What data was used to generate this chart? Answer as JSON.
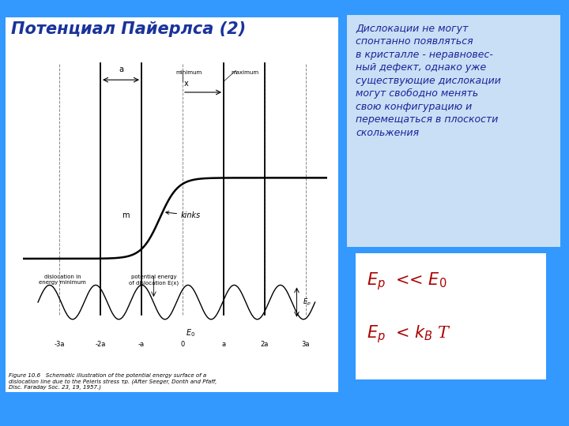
{
  "title": "Потенциал Пайерлса (2)",
  "bg_color": "#3399FF",
  "title_color": "#1a3399",
  "title_fontsize": 15,
  "text_box_color": "#c8dff5",
  "text_box_text": "Дислокации не могут\nспонтанно появляться\nв кристалле - неравновес-\nный дефект, однако уже\nсуществующие дислокации\nмогут свободно менять\nсвою конфигурацию и\nперемещаться в плоскости\nскольжения",
  "text_box_text_color": "#1a2299",
  "eq_box_color": "#ffffff",
  "eq_color": "#aa0000",
  "figure_caption": "Figure 10.6   Schematic illustration of the potential energy surface of a\ndislocation line due to the Peierls stress τp. (After Seeger, Donth and Pfaff,\nDisc. Faraday Soc. 23, 19, 1957.)",
  "panel_bg": "#f0f0f0",
  "diagram_bg": "white"
}
